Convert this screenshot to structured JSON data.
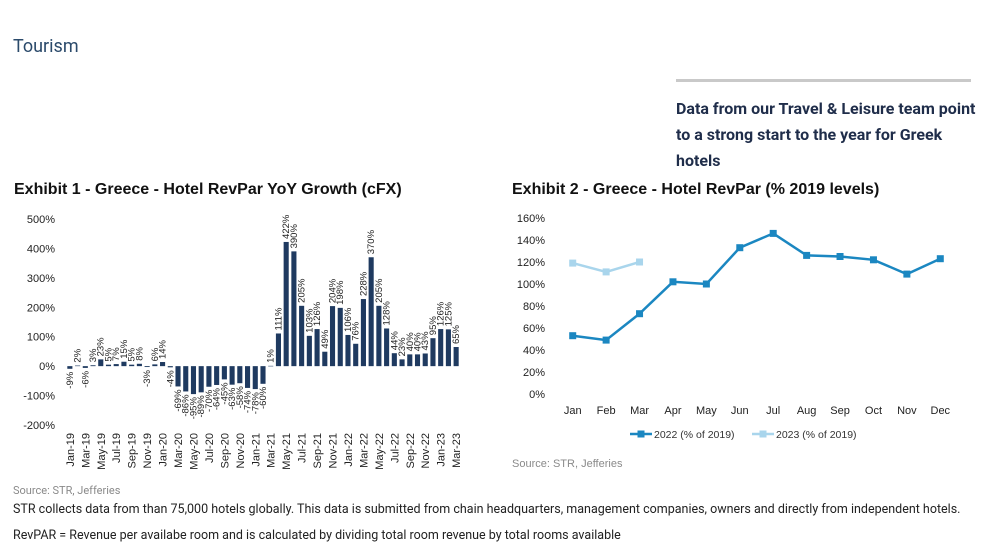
{
  "header": {
    "title": "Tourism"
  },
  "sidebar": {
    "heading": "Data from our Travel & Leisure team point to a strong start to the year for Greek hotels"
  },
  "chart_data": [
    {
      "type": "bar",
      "title": "Exhibit 1 - Greece - Hotel RevPar YoY Growth (cFX)",
      "source": "Source: STR, Jefferies",
      "color": "#1f3a60",
      "categories": [
        "Jan-19",
        null,
        "Mar-19",
        null,
        "May-19",
        null,
        "Jul-19",
        null,
        "Sep-19",
        null,
        "Nov-19",
        null,
        "Jan-20",
        null,
        "Mar-20",
        null,
        "May-20",
        null,
        "Jul-20",
        null,
        "Sep-20",
        null,
        "Nov-20",
        null,
        "Jan-21",
        null,
        "Mar-21",
        null,
        "May-21",
        null,
        "Jul-21",
        null,
        "Sep-21",
        null,
        "Nov-21",
        null,
        "Jan-22",
        null,
        "Mar-22",
        null,
        "May-22",
        null,
        "Jul-22",
        null,
        "Sep-22",
        null,
        "Nov-22",
        null,
        "Jan-23",
        null,
        "Mar-23"
      ],
      "values": [
        -9,
        2,
        -6,
        3,
        23,
        5,
        7,
        15,
        5,
        8,
        -3,
        6,
        14,
        -4,
        -69,
        -86,
        -95,
        -89,
        -70,
        -64,
        -45,
        -63,
        -58,
        -74,
        -78,
        -60,
        1,
        111,
        422,
        390,
        205,
        103,
        126,
        49,
        204,
        198,
        106,
        76,
        228,
        370,
        205,
        128,
        44,
        23,
        40,
        40,
        43,
        95,
        126,
        125,
        65
      ],
      "value_labels": [
        "-9%",
        "2%",
        "-6%",
        "3%",
        "23%",
        "5%",
        "7%",
        "15%",
        "5%",
        "8%",
        "-3%",
        "6%",
        "14%",
        "-4%",
        "-69%",
        "-86%",
        "-95%",
        "-89%",
        "-70%",
        "-64%",
        "-45%",
        "-63%",
        "-58%",
        "-74%",
        "-78%",
        "-60%",
        "1%",
        "111%",
        "422%",
        "390%",
        "205%",
        "103%",
        "126%",
        "49%",
        "204%",
        "198%",
        "106%",
        "76%",
        "228%",
        "370%",
        "205%",
        "128%",
        "44%",
        "23%",
        "40%",
        "40%",
        "43%",
        "95%",
        "126%",
        "125%",
        "65%"
      ],
      "ylim": [
        -200,
        500
      ],
      "yticks": [
        {
          "value": 500,
          "label": "500%"
        },
        {
          "value": 400,
          "label": "400%"
        },
        {
          "value": 300,
          "label": "300%"
        },
        {
          "value": 200,
          "label": "200%"
        },
        {
          "value": 100,
          "label": "100%"
        },
        {
          "value": 0,
          "label": "0%"
        },
        {
          "value": -100,
          "label": "-100%"
        },
        {
          "value": -200,
          "label": "-200%"
        }
      ],
      "grid": false
    },
    {
      "type": "line",
      "title": "Exhibit 2 - Greece - Hotel RevPar (% 2019 levels)",
      "source": "Source: STR, Jefferies",
      "categories": [
        "Jan",
        "Feb",
        "Mar",
        "Apr",
        "May",
        "Jun",
        "Jul",
        "Aug",
        "Sep",
        "Oct",
        "Nov",
        "Dec"
      ],
      "series": [
        {
          "name": "2022 (% of 2019)",
          "color": "#1b87c1",
          "values": [
            53,
            49,
            73,
            102,
            100,
            133,
            146,
            126,
            125,
            122,
            109,
            123
          ]
        },
        {
          "name": "2023 (% of 2019)",
          "color": "#a9d5ec",
          "values": [
            119,
            111,
            120,
            null,
            null,
            null,
            null,
            null,
            null,
            null,
            null,
            null
          ]
        }
      ],
      "ylim": [
        0,
        160
      ],
      "yticks": [
        {
          "value": 160,
          "label": "160%"
        },
        {
          "value": 140,
          "label": "140%"
        },
        {
          "value": 120,
          "label": "120%"
        },
        {
          "value": 100,
          "label": "100%"
        },
        {
          "value": 80,
          "label": "80%"
        },
        {
          "value": 60,
          "label": "60%"
        },
        {
          "value": 40,
          "label": "40%"
        },
        {
          "value": 20,
          "label": "20%"
        },
        {
          "value": 0,
          "label": "0%"
        }
      ],
      "grid": false,
      "legend": "bottom"
    }
  ],
  "footer": {
    "source": "Source: STR, Jefferies",
    "text": "STR collects data from than 75,000 hotels globally. This data is submitted from chain headquarters, management companies, owners and directly from independent hotels. RevPAR = Revenue per availabe room and is calculated by dividing total room revenue by total rooms available"
  }
}
